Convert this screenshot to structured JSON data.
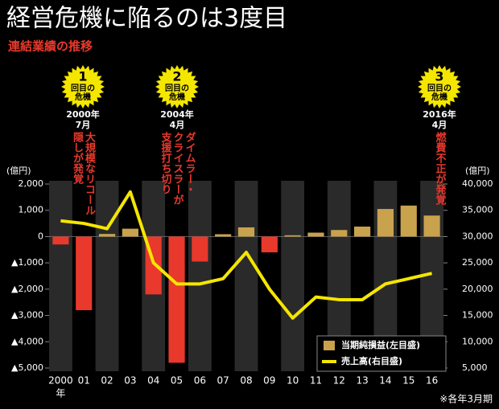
{
  "chart_data": {
    "type": "bar_line",
    "title": "経営危機に陥るのは3度目",
    "subtitle": "連結業績の推移",
    "y_unit": "(億円)",
    "y2_unit": "(億円)",
    "xlabel": "年",
    "footnote": "※各年3月期",
    "categories": [
      "2000",
      "01",
      "02",
      "03",
      "04",
      "05",
      "06",
      "07",
      "08",
      "09",
      "10",
      "11",
      "12",
      "13",
      "14",
      "15",
      "16"
    ],
    "series": [
      {
        "name": "当期純損益(左目盛)",
        "type": "bar",
        "color": "#c9a24e",
        "negative_color": "#e8392c",
        "values": [
          -300,
          -2800,
          100,
          300,
          -2200,
          -4800,
          -950,
          90,
          350,
          -600,
          50,
          150,
          250,
          380,
          1050,
          1180,
          800
        ]
      },
      {
        "name": "売上高(右目盛)",
        "type": "line",
        "axis": "y2",
        "color": "#f5e600",
        "values": [
          33000,
          32500,
          31500,
          38500,
          25000,
          21000,
          21000,
          22000,
          27000,
          20000,
          14500,
          18500,
          18000,
          18000,
          21000,
          22000,
          23000
        ]
      }
    ],
    "ylim": [
      -5000,
      2000
    ],
    "yticks": [
      {
        "value": 2000,
        "label": "2,000"
      },
      {
        "value": 1000,
        "label": "1,000"
      },
      0,
      {
        "value": -1000,
        "label": "▲1,000"
      },
      {
        "value": -2000,
        "label": "▲2,000"
      },
      {
        "value": -3000,
        "label": "▲3,000"
      },
      {
        "value": -4000,
        "label": "▲4,000"
      },
      {
        "value": -5000,
        "label": "▲5,000"
      }
    ],
    "y2lim": [
      5000,
      40000
    ],
    "y2ticks": [
      {
        "value": 40000,
        "label": "40,000"
      },
      {
        "value": 35000,
        "label": "35,000"
      },
      {
        "value": 30000,
        "label": "30,000"
      },
      {
        "value": 25000,
        "label": "25,000"
      },
      {
        "value": 20000,
        "label": "20,000"
      },
      {
        "value": 15000,
        "label": "15,000"
      },
      {
        "value": 10000,
        "label": "10,000"
      },
      {
        "value": 5000,
        "label": "5,000"
      }
    ],
    "annotations": [
      {
        "number": 1,
        "text": [
          "回目の",
          "危機"
        ],
        "date": [
          "2000年",
          "7月"
        ],
        "note": [
          "大規模なリコール",
          "隠しが発覚"
        ]
      },
      {
        "number": 2,
        "text": [
          "回目の",
          "危機"
        ],
        "date": [
          "2004年",
          "4月"
        ],
        "note": [
          "ダイムラー・",
          "クライスラーが",
          "支援打ち切り"
        ]
      },
      {
        "number": 3,
        "text": [
          "回目の",
          "危機"
        ],
        "date": [
          "2016年",
          "4月"
        ],
        "note": [
          "燃費不正が発覚"
        ]
      }
    ]
  }
}
